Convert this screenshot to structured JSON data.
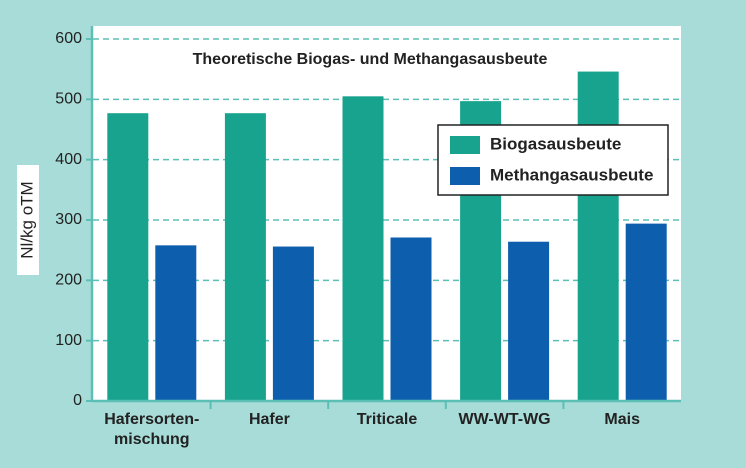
{
  "chart_data": {
    "type": "bar",
    "title": "Theoretische Biogas- und Methangasausbeute",
    "y_label": "Nl/kg oTM",
    "categories": [
      "Hafersorten-\nmischung",
      "Hafer",
      "Triticale",
      "WW-WT-WG",
      "Mais"
    ],
    "series": [
      {
        "name": "Biogasausbeute",
        "color": "#17a38e",
        "values": [
          477,
          477,
          505,
          497,
          546
        ]
      },
      {
        "name": "Methangasausbeute",
        "color": "#0d5fae",
        "values": [
          258,
          256,
          271,
          264,
          294
        ]
      }
    ],
    "ylim": [
      0,
      600
    ],
    "yticks": [
      0,
      100,
      200,
      300,
      400,
      500,
      600
    ],
    "grid": true,
    "legend": "upper right"
  }
}
